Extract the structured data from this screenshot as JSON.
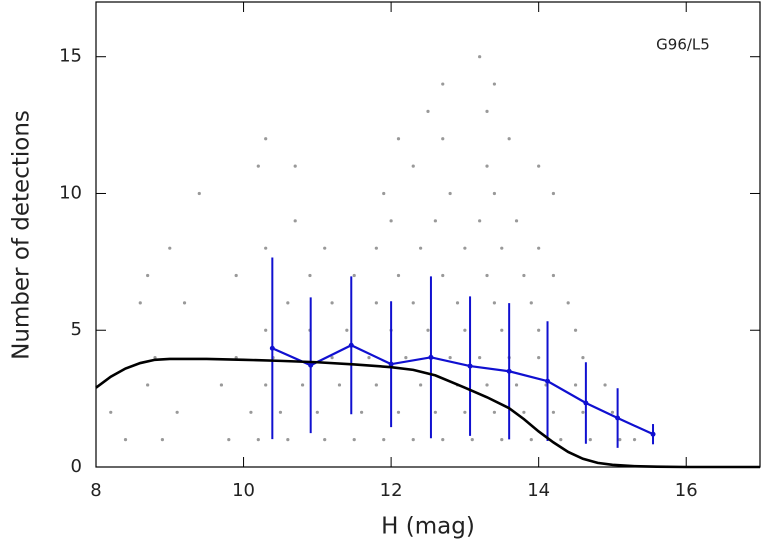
{
  "chart_data": {
    "type": "scatter",
    "annotation": "G96/L5",
    "x_label": "H (mag)",
    "y_label": "Number of detections",
    "xlim": [
      8,
      17
    ],
    "ylim": [
      0,
      17
    ],
    "xticks": [
      8,
      10,
      12,
      14,
      16
    ],
    "yticks": [
      0,
      5,
      10,
      15
    ],
    "series": [
      {
        "type": "scatter",
        "color": "#999999",
        "x": [
          8.4,
          8.9,
          9.8,
          10.2,
          10.6,
          11.1,
          11.5,
          11.9,
          12.3,
          12.7,
          13.1,
          13.5,
          13.9,
          14.3,
          14.7,
          15.1,
          15.3,
          8.2,
          9.1,
          10.1,
          10.5,
          11.0,
          11.6,
          12.1,
          12.6,
          13.0,
          13.4,
          13.8,
          14.2,
          14.6,
          15.0,
          8.7,
          9.7,
          10.3,
          10.8,
          11.3,
          11.8,
          12.4,
          12.9,
          13.3,
          13.7,
          14.1,
          14.5,
          14.9,
          8.8,
          9.9,
          10.4,
          11.2,
          11.7,
          12.2,
          12.8,
          13.2,
          13.6,
          14.0,
          14.6,
          10.3,
          10.9,
          11.4,
          12.0,
          12.5,
          13.0,
          13.5,
          14.0,
          14.5,
          8.6,
          9.2,
          10.6,
          11.2,
          11.8,
          12.3,
          12.9,
          13.4,
          13.9,
          14.4,
          8.7,
          9.9,
          10.9,
          11.5,
          12.1,
          12.7,
          13.3,
          13.8,
          14.2,
          9.0,
          10.3,
          11.1,
          11.8,
          12.4,
          13.0,
          13.5,
          14.0,
          10.7,
          12.0,
          12.6,
          13.2,
          13.7,
          9.4,
          11.9,
          12.8,
          13.4,
          14.2,
          10.2,
          10.7,
          12.3,
          13.3,
          14.0,
          10.3,
          12.1,
          12.7,
          13.6,
          12.5,
          13.3,
          12.7,
          13.4,
          13.2
        ],
        "values": [
          1,
          1,
          1,
          1,
          1,
          1,
          1,
          1,
          1,
          1,
          1,
          1,
          1,
          1,
          1,
          1,
          1,
          2,
          2,
          2,
          2,
          2,
          2,
          2,
          2,
          2,
          2,
          2,
          2,
          2,
          2,
          3,
          3,
          3,
          3,
          3,
          3,
          3,
          3,
          3,
          3,
          3,
          3,
          3,
          4,
          4,
          4,
          4,
          4,
          4,
          4,
          4,
          4,
          4,
          4,
          5,
          5,
          5,
          5,
          5,
          5,
          5,
          5,
          5,
          6,
          6,
          6,
          6,
          6,
          6,
          6,
          6,
          6,
          6,
          7,
          7,
          7,
          7,
          7,
          7,
          7,
          7,
          7,
          8,
          8,
          8,
          8,
          8,
          8,
          8,
          8,
          9,
          9,
          9,
          9,
          9,
          10,
          10,
          10,
          10,
          10,
          11,
          11,
          11,
          11,
          11,
          12,
          12,
          12,
          12,
          13,
          13,
          14,
          14,
          15
        ]
      },
      {
        "type": "line",
        "color": "#1010d0",
        "x": [
          10.39,
          10.91,
          11.46,
          12.0,
          12.54,
          13.07,
          13.6,
          14.12,
          14.64,
          15.07,
          15.55
        ],
        "values": [
          4.34,
          3.72,
          4.45,
          3.76,
          4.01,
          3.69,
          3.5,
          3.14,
          2.34,
          1.79,
          1.2
        ],
        "errors": [
          3.32,
          2.48,
          2.52,
          2.3,
          2.96,
          2.55,
          2.49,
          2.19,
          1.49,
          1.09,
          0.37
        ]
      },
      {
        "type": "line",
        "color": "#000000",
        "x": [
          8.0,
          8.2,
          8.4,
          8.6,
          8.8,
          9.0,
          9.5,
          10.0,
          10.5,
          11.0,
          11.5,
          12.0,
          12.3,
          12.6,
          13.0,
          13.3,
          13.6,
          13.8,
          14.0,
          14.2,
          14.4,
          14.6,
          14.8,
          15.0,
          15.3,
          15.6,
          16.0,
          16.5,
          17.0
        ],
        "values": [
          2.9,
          3.3,
          3.6,
          3.8,
          3.92,
          3.95,
          3.95,
          3.92,
          3.88,
          3.83,
          3.75,
          3.65,
          3.55,
          3.35,
          2.9,
          2.55,
          2.15,
          1.75,
          1.3,
          0.9,
          0.55,
          0.3,
          0.15,
          0.08,
          0.03,
          0.01,
          0.0,
          0.0,
          0.0
        ]
      }
    ]
  }
}
